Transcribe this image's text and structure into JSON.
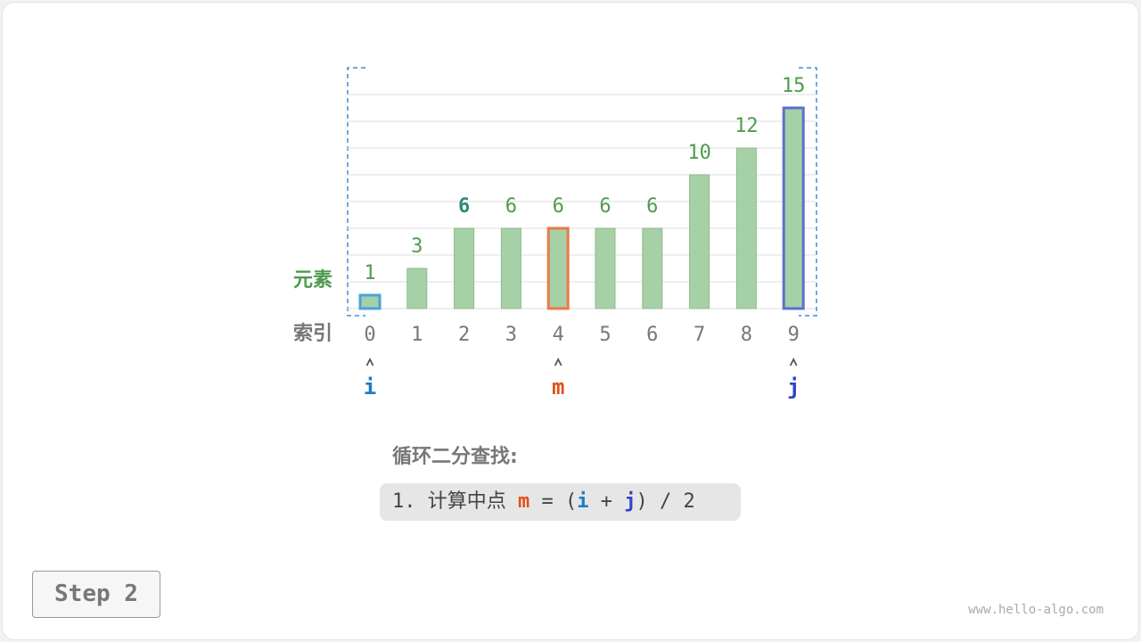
{
  "chart_data": {
    "type": "bar",
    "row_labels": {
      "values": "元素",
      "indices": "索引"
    },
    "categories": [
      "0",
      "1",
      "2",
      "3",
      "4",
      "5",
      "6",
      "7",
      "8",
      "9"
    ],
    "values": [
      1,
      3,
      6,
      6,
      6,
      6,
      6,
      10,
      12,
      15
    ],
    "color": "#a6d0a6",
    "label_color": "#4f9a4f",
    "highlight_label_index": 2,
    "highlight_label_color": "#2e8a7a",
    "ylim": [
      0,
      16
    ],
    "yticks": [
      2,
      4,
      6,
      8,
      10,
      12,
      14,
      16
    ],
    "grid": true,
    "outlines": [
      {
        "index": 0,
        "color": "#49a3dd"
      },
      {
        "index": 4,
        "color": "#ec7a4a"
      },
      {
        "index": 9,
        "color": "#5a6fd0"
      }
    ],
    "pointers": [
      {
        "label": "i",
        "index": 0,
        "color": "#1c7cc2"
      },
      {
        "label": "m",
        "index": 4,
        "color": "#e0521a"
      },
      {
        "label": "j",
        "index": 9,
        "color": "#2f44c6"
      }
    ]
  },
  "panel": {
    "title": "循环二分查找:",
    "formula": [
      {
        "text": "1. 计算中点 "
      },
      {
        "text": "m",
        "color": "#e0521a"
      },
      {
        "text": " = ("
      },
      {
        "text": "i",
        "color": "#1c7cc2"
      },
      {
        "text": " + "
      },
      {
        "text": "j",
        "color": "#2f44c6"
      },
      {
        "text": ") / 2"
      }
    ]
  },
  "step": "Step 2",
  "watermark": "www.hello-algo.com"
}
